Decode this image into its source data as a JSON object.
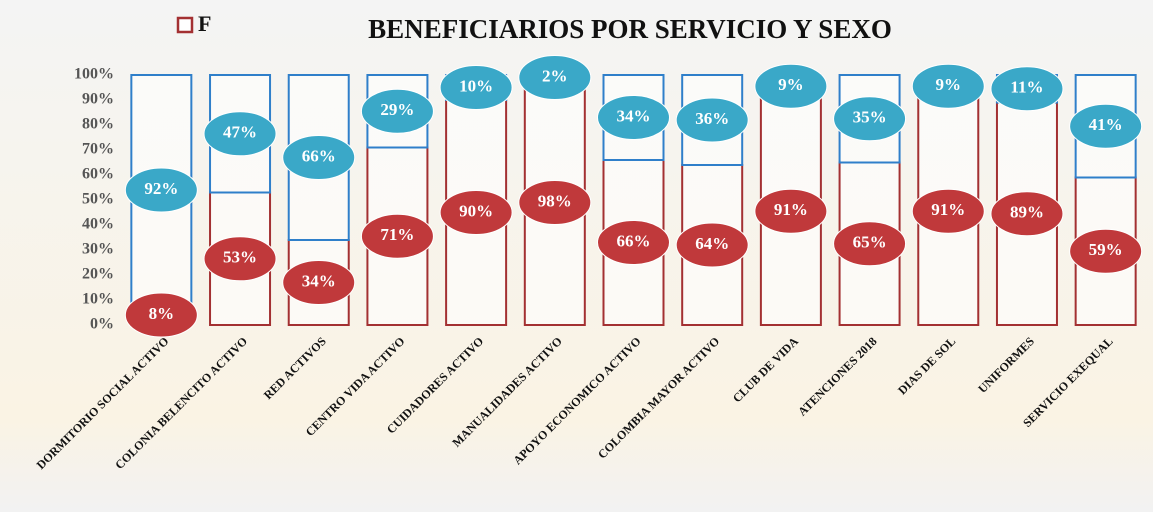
{
  "chart_data": {
    "type": "stacked_bar",
    "title": "BENEFICIARIOS POR SERVICIO Y SEXO",
    "categories": [
      "DORMITORIO SOCIAL ACTIVO",
      "COLONIA BELENCITO ACTIVO",
      "RED ACTIVOS",
      "CENTRO VIDA ACTIVO",
      "CUIDADORES ACTIVO",
      "MANUALIDADES ACTIVO",
      "APOYO ECONOMICO ACTIVO",
      "COLOMBIA MAYOR ACTIVO",
      "CLUB DE VIDA",
      "ATENCIONES 2018",
      "DIAS DE SOL",
      "UNIFORMES",
      "SERVICIO EXEQUAL"
    ],
    "series": [
      {
        "name": "F",
        "color": "#c0393b",
        "values": [
          8,
          53,
          34,
          71,
          90,
          98,
          66,
          64,
          91,
          65,
          91,
          89,
          59
        ],
        "value_labels": [
          "8%",
          "53%",
          "34%",
          "71%",
          "90%",
          "98%",
          "66%",
          "64%",
          "91%",
          "65%",
          "91%",
          "89%",
          "59%"
        ]
      },
      {
        "color": "#3aa8c8",
        "values": [
          92,
          47,
          66,
          29,
          10,
          2,
          34,
          36,
          9,
          35,
          9,
          11,
          41
        ],
        "value_labels": [
          "92%",
          "47%",
          "66%",
          "29%",
          "10%",
          "2%",
          "34%",
          "36%",
          "9%",
          "35%",
          "9%",
          "11%",
          "41%"
        ]
      }
    ],
    "ylim": [
      0,
      100
    ],
    "yticks": [
      {
        "value": 0,
        "label": "0%"
      },
      {
        "value": 10,
        "label": "10%"
      },
      {
        "value": 20,
        "label": "20%"
      },
      {
        "value": 30,
        "label": "30%"
      },
      {
        "value": 40,
        "label": "40%"
      },
      {
        "value": 50,
        "label": "50%"
      },
      {
        "value": 60,
        "label": "60%"
      },
      {
        "value": 70,
        "label": "70%"
      },
      {
        "value": 80,
        "label": "80%"
      },
      {
        "value": 90,
        "label": "90%"
      },
      {
        "value": 100,
        "label": "100%"
      }
    ],
    "legend": "top-left"
  }
}
